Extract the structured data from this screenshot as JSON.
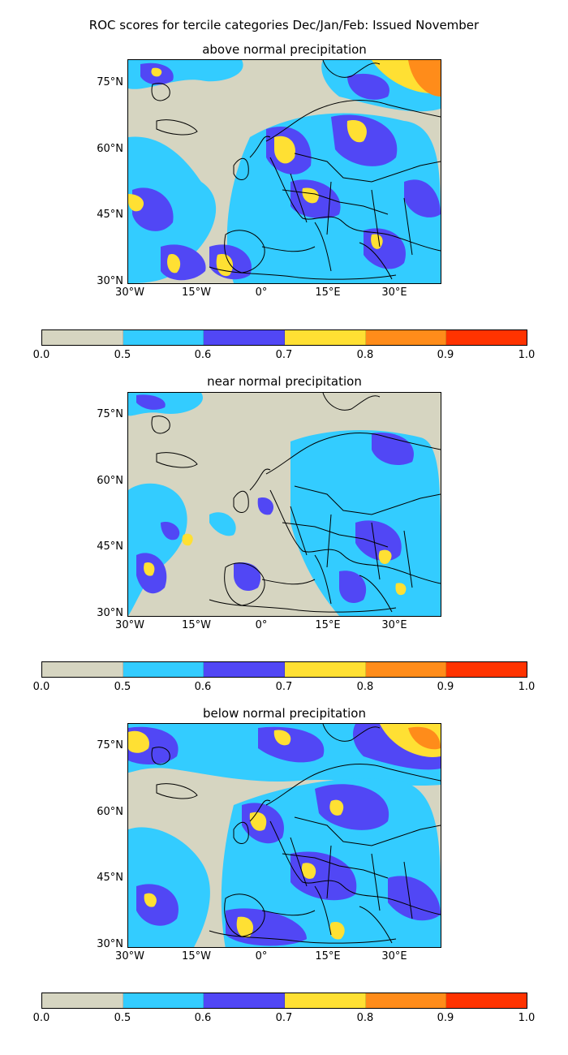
{
  "figure": {
    "suptitle": "ROC scores for tercile categories Dec/Jan/Feb: Issued November"
  },
  "panels": [
    {
      "title": "above normal precipitation"
    },
    {
      "title": "near normal precipitation"
    },
    {
      "title": "below normal precipitation"
    }
  ],
  "axes": {
    "lat_labels": [
      "75°N",
      "60°N",
      "45°N",
      "30°N"
    ],
    "lon_labels": [
      "30°W",
      "15°W",
      "0°",
      "15°E",
      "30°E"
    ]
  },
  "colorbar": {
    "ticks": [
      "0.0",
      "0.5",
      "0.6",
      "0.7",
      "0.8",
      "0.9",
      "1.0"
    ],
    "colors": [
      "#d6d5c1",
      "#33ccff",
      "#5147f5",
      "#ffe033",
      "#ff8c1a",
      "#ff3300"
    ]
  },
  "colors": {
    "coastline": "#000000",
    "background": "#d6d5c1"
  }
}
